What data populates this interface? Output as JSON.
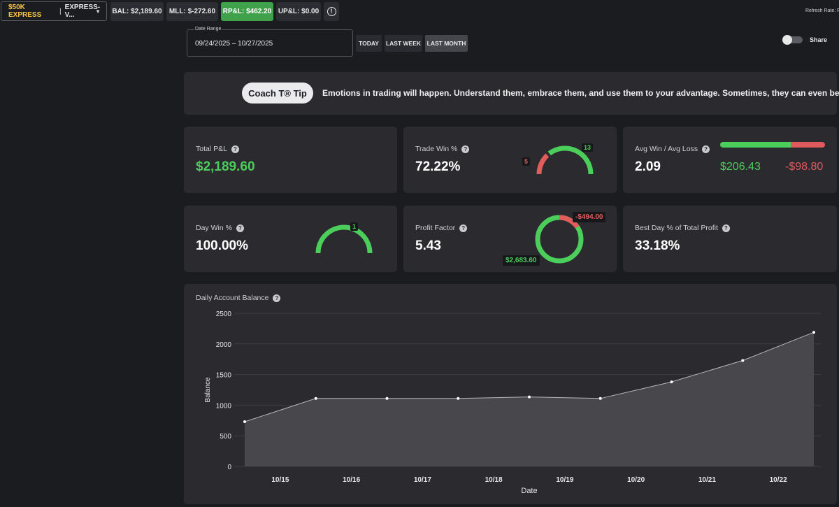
{
  "topbar": {
    "account_name": "$50K EXPRESS",
    "account_separator": "|",
    "account_id": "EXPRESS-V...",
    "chevron_icon": "chevron-down-icon",
    "chips": [
      {
        "key": "bal",
        "label": "BAL: $2,189.60"
      },
      {
        "key": "mll",
        "label": "MLL: $-272.60"
      },
      {
        "key": "rpl",
        "label": "RP&L: $462.20"
      },
      {
        "key": "upl",
        "label": "UP&L: $0.00"
      }
    ],
    "info_icon": "info-icon",
    "info_glyph": "!",
    "refresh_label": "Refresh Rate: Fast"
  },
  "date_range": {
    "label": "Date Range",
    "value": "09/24/2025 – 10/27/2025",
    "buttons": [
      {
        "label": "TODAY",
        "active": false
      },
      {
        "label": "LAST WEEK",
        "active": false
      },
      {
        "label": "LAST MONTH",
        "active": true
      }
    ]
  },
  "share": {
    "label": "Share",
    "on": false
  },
  "coach": {
    "button_label": "Coach T® Tip",
    "tip": "Emotions in trading will happen. Understand them, embrace them, and use them to your advantage. Sometimes, they can even be helpful!"
  },
  "help_glyph": "?",
  "stats": {
    "total_pnl": {
      "title": "Total P&L",
      "value": "$2,189.60"
    },
    "trade_win": {
      "title": "Trade Win %",
      "value": "72.22%",
      "wins": "13",
      "losses": "5",
      "win_fraction": 0.7222
    },
    "avg_win_loss": {
      "title": "Avg Win / Avg Loss",
      "value": "2.09",
      "avg_win": "$206.43",
      "avg_loss": "-$98.80",
      "win_fraction": 0.676
    },
    "day_win": {
      "title": "Day Win %",
      "value": "100.00%",
      "wins": "1",
      "win_fraction": 1.0
    },
    "profit_factor": {
      "title": "Profit Factor",
      "value": "5.43",
      "gross_profit": "$2,683.60",
      "gross_loss": "-$494.00",
      "loss_fraction": 0.155
    },
    "best_day": {
      "title": "Best Day % of Total Profit",
      "value": "33.18%"
    }
  },
  "colors": {
    "green": "#4cce5b",
    "red": "#e25c5c",
    "card": "#2a2a2f"
  },
  "chart_data": {
    "type": "area",
    "title": "Daily Account Balance",
    "xlabel": "Date",
    "ylabel": "Balance",
    "ylim": [
      0,
      2500
    ],
    "yticks": [
      0,
      500,
      1000,
      1500,
      2000,
      2500
    ],
    "xticks": [
      "10/15",
      "10/16",
      "10/17",
      "10/18",
      "10/19",
      "10/20",
      "10/21",
      "10/22"
    ],
    "points": [
      {
        "x": "10/14",
        "y": 730
      },
      {
        "x": "10/15",
        "y": 1110
      },
      {
        "x": "10/16",
        "y": 1110
      },
      {
        "x": "10/17",
        "y": 1110
      },
      {
        "x": "10/18",
        "y": 1135
      },
      {
        "x": "10/19",
        "y": 1110
      },
      {
        "x": "10/20",
        "y": 1380
      },
      {
        "x": "10/21",
        "y": 1730
      },
      {
        "x": "10/22",
        "y": 2189.6
      }
    ],
    "grid": true,
    "legend": "none"
  }
}
